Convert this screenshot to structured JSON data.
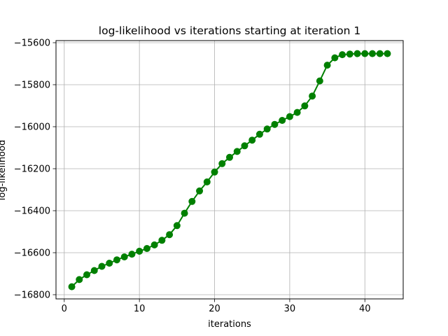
{
  "chart_data": {
    "type": "line",
    "title": "log-likelihood vs iterations starting at iteration 1",
    "xlabel": "iterations",
    "ylabel": "log-likelihood",
    "xlim": [
      -1.1,
      45.1
    ],
    "ylim": [
      -16820,
      -15590
    ],
    "xticks": [
      0,
      10,
      20,
      30,
      40
    ],
    "yticks": [
      -16800,
      -16600,
      -16400,
      -16200,
      -16000,
      -15800,
      -15600
    ],
    "xtick_labels": [
      "0",
      "10",
      "20",
      "30",
      "40"
    ],
    "ytick_labels": [
      "−16800",
      "−16600",
      "−16400",
      "−16200",
      "−16000",
      "−15800",
      "−15600"
    ],
    "grid": true,
    "series": [
      {
        "color": "#008000",
        "marker": "circle",
        "x": [
          1,
          2,
          3,
          4,
          5,
          6,
          7,
          8,
          9,
          10,
          11,
          12,
          13,
          14,
          15,
          16,
          17,
          18,
          19,
          20,
          21,
          22,
          23,
          24,
          25,
          26,
          27,
          28,
          29,
          30,
          31,
          32,
          33,
          34,
          35,
          36,
          37,
          38,
          39,
          40,
          41,
          42,
          43
        ],
        "y": [
          -16762,
          -16728,
          -16705,
          -16685,
          -16665,
          -16650,
          -16634,
          -16620,
          -16607,
          -16593,
          -16580,
          -16563,
          -16541,
          -16514,
          -16471,
          -16412,
          -16356,
          -16306,
          -16263,
          -16216,
          -16176,
          -16146,
          -16118,
          -16091,
          -16064,
          -16036,
          -16011,
          -15989,
          -15970,
          -15952,
          -15932,
          -15901,
          -15854,
          -15782,
          -15707,
          -15672,
          -15657,
          -15654,
          -15652,
          -15652,
          -15652,
          -15652,
          -15652
        ]
      }
    ]
  }
}
